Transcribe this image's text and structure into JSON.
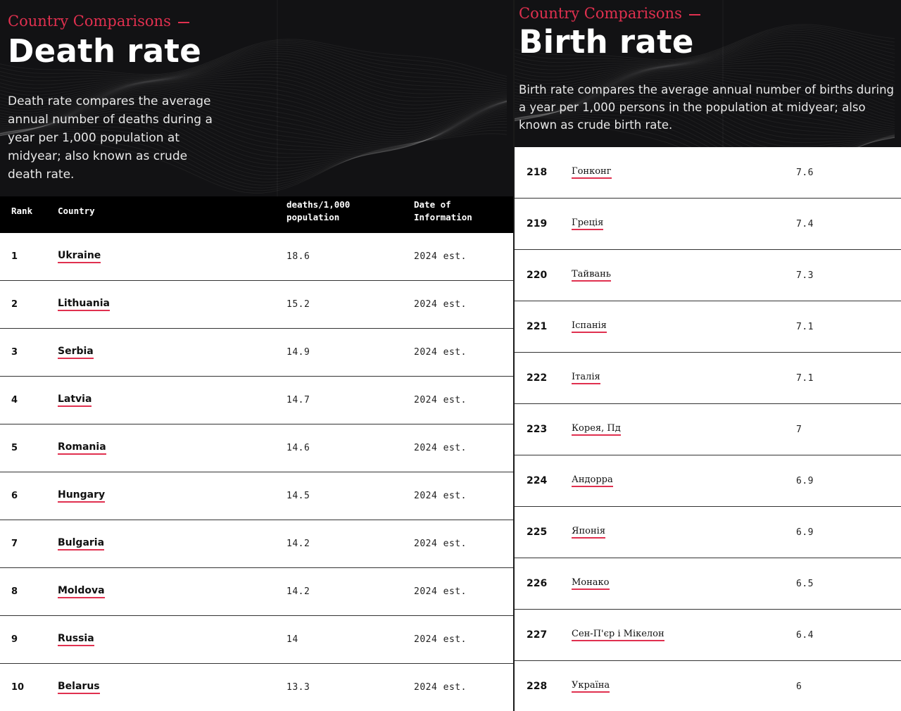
{
  "left": {
    "kicker": "Country Comparisons",
    "title": "Death rate",
    "description": "Death rate compares the average annual number of deaths during a year per 1,000 population at midyear; also known as crude death rate.",
    "columns": {
      "rank": "Rank",
      "country": "Country",
      "value_line1": "deaths/1,000",
      "value_line2": "population",
      "date_line1": "Date of",
      "date_line2": "Information"
    },
    "rows": [
      {
        "rank": "1",
        "country": "Ukraine",
        "value": "18.6",
        "date": "2024 est."
      },
      {
        "rank": "2",
        "country": "Lithuania",
        "value": "15.2",
        "date": "2024 est."
      },
      {
        "rank": "3",
        "country": "Serbia",
        "value": "14.9",
        "date": "2024 est."
      },
      {
        "rank": "4",
        "country": "Latvia",
        "value": "14.7",
        "date": "2024 est."
      },
      {
        "rank": "5",
        "country": "Romania",
        "value": "14.6",
        "date": "2024 est."
      },
      {
        "rank": "6",
        "country": "Hungary",
        "value": "14.5",
        "date": "2024 est."
      },
      {
        "rank": "7",
        "country": "Bulgaria",
        "value": "14.2",
        "date": "2024 est."
      },
      {
        "rank": "8",
        "country": "Moldova",
        "value": "14.2",
        "date": "2024 est."
      },
      {
        "rank": "9",
        "country": "Russia",
        "value": "14",
        "date": "2024 est."
      },
      {
        "rank": "10",
        "country": "Belarus",
        "value": "13.3",
        "date": "2024 est."
      }
    ]
  },
  "right": {
    "kicker": "Country Comparisons",
    "title": "Birth rate",
    "description": "Birth rate compares the average annual number of births during a year per 1,000 persons in the population at midyear; also known as crude birth rate.",
    "rows": [
      {
        "rank": "218",
        "country": "Гонконг",
        "value": "7.6"
      },
      {
        "rank": "219",
        "country": "Греція",
        "value": "7.4"
      },
      {
        "rank": "220",
        "country": "Тайвань",
        "value": "7.3"
      },
      {
        "rank": "221",
        "country": "Іспанія",
        "value": "7.1"
      },
      {
        "rank": "222",
        "country": "Італія",
        "value": "7.1"
      },
      {
        "rank": "223",
        "country": "Корея, Пд",
        "value": "7"
      },
      {
        "rank": "224",
        "country": "Андорра",
        "value": "6.9"
      },
      {
        "rank": "225",
        "country": "Японія",
        "value": "6.9"
      },
      {
        "rank": "226",
        "country": "Монако",
        "value": "6.5"
      },
      {
        "rank": "227",
        "country": "Сен-П'єр і Мікелон",
        "value": "6.4"
      },
      {
        "rank": "228",
        "country": "Україна",
        "value": "6"
      }
    ]
  },
  "colors": {
    "accent": "#e0304f",
    "hero_bg": "#121214",
    "header_bg": "#000000",
    "text": "#111111"
  }
}
